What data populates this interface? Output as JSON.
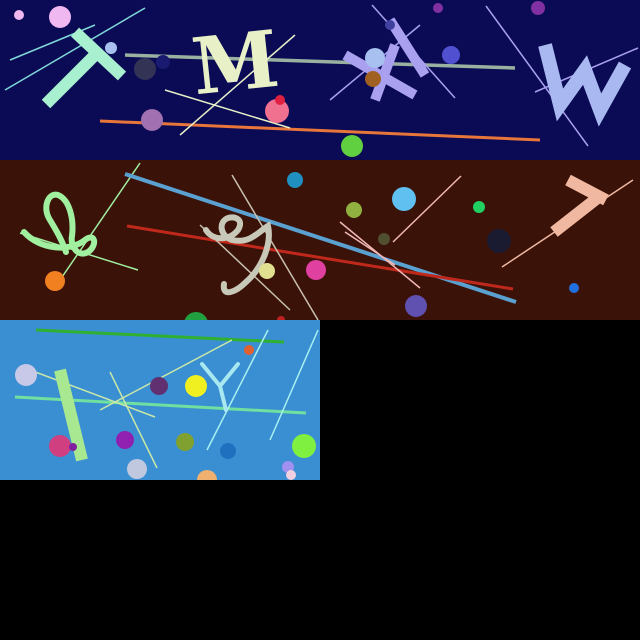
{
  "image": {
    "panels": [
      {
        "name": "captcha-panel-1",
        "background": "#0b0b55",
        "glyphs": [
          "T",
          "M",
          "X",
          "W"
        ]
      },
      {
        "name": "captcha-panel-2",
        "background": "#3a1208",
        "glyphs": [
          "Q",
          "G",
          "7"
        ]
      },
      {
        "name": "captcha-panel-3",
        "background": "#3a8fd2",
        "glyphs": [
          "I",
          "Y"
        ]
      }
    ]
  },
  "colors": {
    "page_background": "#000000",
    "accent_mint": "#a8f0d0",
    "accent_cream": "#e8f0c8",
    "accent_lavender": "#a9a0f0",
    "accent_peach": "#f0b8a0",
    "accent_green": "#a0f0a0",
    "accent_orange": "#e8763a",
    "accent_red": "#c0281c",
    "accent_steelblue": "#5aa0d0"
  }
}
